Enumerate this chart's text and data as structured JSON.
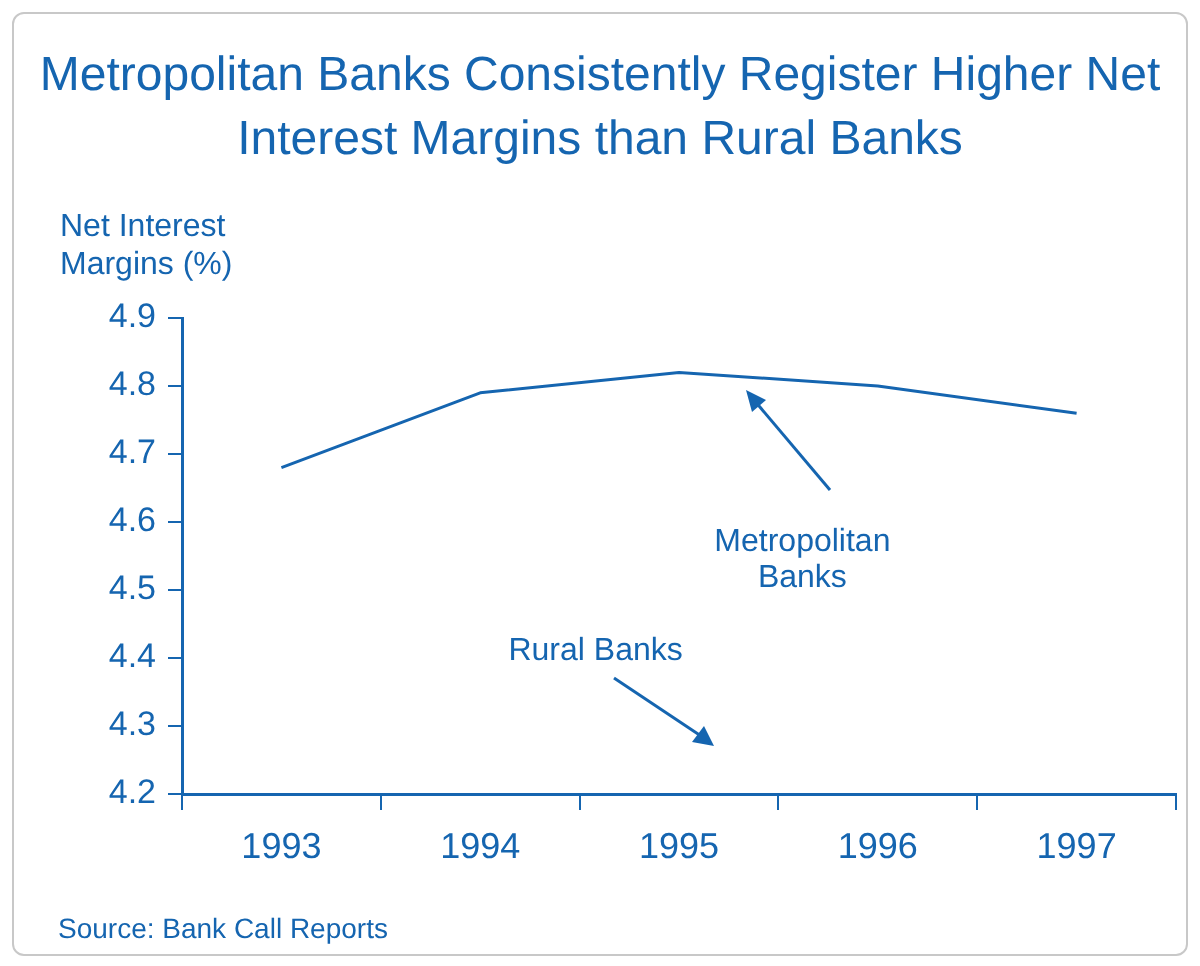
{
  "chart_data": {
    "type": "line",
    "title": "Metropolitan Banks Consistently Register Higher Net Interest Margins than Rural Banks",
    "ylabel": "Net Interest Margins (%)",
    "categories": [
      "1993",
      "1994",
      "1995",
      "1996",
      "1997"
    ],
    "series": [
      {
        "name": "Metropolitan Banks",
        "color": "#1565b0",
        "values": [
          4.68,
          4.79,
          4.82,
          4.8,
          4.76
        ]
      }
    ],
    "ylim": [
      4.2,
      4.9
    ],
    "yticks": [
      4.2,
      4.3,
      4.4,
      4.5,
      4.6,
      4.7,
      4.8,
      4.9
    ],
    "grid": false,
    "legend": false,
    "marker": "none",
    "line_style": "solid",
    "annotations": [
      "Rural Banks",
      "Source: Bank Call Reports"
    ]
  }
}
